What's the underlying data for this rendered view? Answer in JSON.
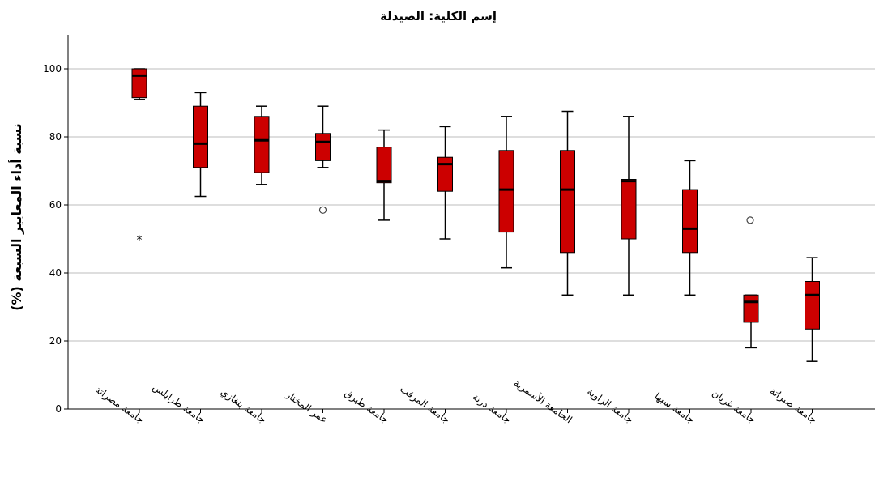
{
  "chart_data": {
    "type": "box",
    "title": "إسم الكلية: الصيدلة",
    "xlabel": "",
    "ylabel": "نسبة أداء المعايير السبعة (%)",
    "ylim": [
      0,
      110
    ],
    "yticks": [
      0,
      20,
      40,
      60,
      80,
      100
    ],
    "grid": true,
    "box_color": "#cc0000",
    "gridline_color": "#bdbdbd",
    "categories": [
      "جامعة مصراتة",
      "جامعة طرابلس",
      "جامعة بنغازي",
      "عمر المختار",
      "جامعة طبرق",
      "جامعة المرقب",
      "جامعة درنة",
      "الجامعة الأسمرية",
      "جامعة الزاوية",
      "جامعة سبها",
      "جامعة غريان",
      "جامعة صبراتة"
    ],
    "boxes": [
      {
        "whisker_low": 91,
        "q1": 91.5,
        "median": 98,
        "q3": 100,
        "whisker_high": 100,
        "outliers": [],
        "extremes": [
          50
        ]
      },
      {
        "whisker_low": 62.5,
        "q1": 71,
        "median": 78,
        "q3": 89,
        "whisker_high": 93,
        "outliers": [],
        "extremes": []
      },
      {
        "whisker_low": 66,
        "q1": 69.5,
        "median": 79,
        "q3": 86,
        "whisker_high": 89,
        "outliers": [],
        "extremes": []
      },
      {
        "whisker_low": 71,
        "q1": 73,
        "median": 78.5,
        "q3": 81,
        "whisker_high": 89,
        "outliers": [
          58.5
        ],
        "extremes": []
      },
      {
        "whisker_low": 55.5,
        "q1": 66.5,
        "median": 67,
        "q3": 77,
        "whisker_high": 82,
        "outliers": [],
        "extremes": []
      },
      {
        "whisker_low": 50,
        "q1": 64,
        "median": 72,
        "q3": 74,
        "whisker_high": 83,
        "outliers": [],
        "extremes": []
      },
      {
        "whisker_low": 41.5,
        "q1": 52,
        "median": 64.5,
        "q3": 76,
        "whisker_high": 86,
        "outliers": [],
        "extremes": []
      },
      {
        "whisker_low": 33.5,
        "q1": 46,
        "median": 64.5,
        "q3": 76,
        "whisker_high": 87.5,
        "outliers": [],
        "extremes": []
      },
      {
        "whisker_low": 33.5,
        "q1": 50,
        "median": 67,
        "q3": 67.5,
        "whisker_high": 86,
        "outliers": [],
        "extremes": []
      },
      {
        "whisker_low": 33.5,
        "q1": 46,
        "median": 53,
        "q3": 64.5,
        "whisker_high": 73,
        "outliers": [],
        "extremes": []
      },
      {
        "whisker_low": 18,
        "q1": 25.5,
        "median": 31.5,
        "q3": 33.5,
        "whisker_high": 33.5,
        "outliers": [
          55.5
        ],
        "extremes": []
      },
      {
        "whisker_low": 14,
        "q1": 23.5,
        "median": 33.5,
        "q3": 37.5,
        "whisker_high": 44.5,
        "outliers": [],
        "extremes": []
      }
    ]
  }
}
